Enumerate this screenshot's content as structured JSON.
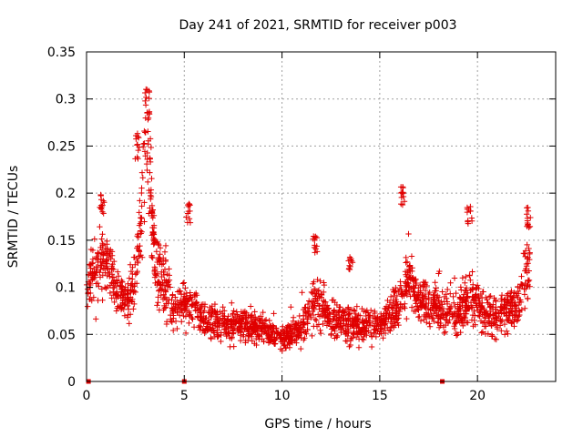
{
  "chart_data": {
    "type": "scatter",
    "title": "Day 241 of 2021, SRMTID for receiver p003",
    "xlabel": "GPS time / hours",
    "ylabel": "SRMTID / TECUs",
    "xlim": [
      0,
      24
    ],
    "ylim": [
      0,
      0.35
    ],
    "x_ticks": [
      "0",
      "5",
      "10",
      "15",
      "20"
    ],
    "y_ticks": [
      "0",
      "0.05",
      "0.1",
      "0.15",
      "0.2",
      "0.25",
      "0.3",
      "0.35"
    ],
    "grid": true,
    "marker": "+",
    "series_color": "#e00000",
    "zero_markers_x": [
      0.1,
      5.0,
      18.2
    ],
    "anchors": [
      [
        0.0,
        0.1
      ],
      [
        0.5,
        0.12
      ],
      [
        1.0,
        0.13
      ],
      [
        1.5,
        0.1
      ],
      [
        2.0,
        0.08
      ],
      [
        2.5,
        0.11
      ],
      [
        2.8,
        0.17
      ],
      [
        3.0,
        0.26
      ],
      [
        3.2,
        0.22
      ],
      [
        3.5,
        0.13
      ],
      [
        4.0,
        0.1
      ],
      [
        4.5,
        0.08
      ],
      [
        5.0,
        0.09
      ],
      [
        6.0,
        0.065
      ],
      [
        7.0,
        0.06
      ],
      [
        8.0,
        0.06
      ],
      [
        9.0,
        0.055
      ],
      [
        10.0,
        0.045
      ],
      [
        11.0,
        0.055
      ],
      [
        11.8,
        0.09
      ],
      [
        12.5,
        0.065
      ],
      [
        14.0,
        0.06
      ],
      [
        15.0,
        0.06
      ],
      [
        16.0,
        0.08
      ],
      [
        16.5,
        0.11
      ],
      [
        17.0,
        0.085
      ],
      [
        18.0,
        0.075
      ],
      [
        19.0,
        0.07
      ],
      [
        19.7,
        0.09
      ],
      [
        20.5,
        0.07
      ],
      [
        21.0,
        0.065
      ],
      [
        22.0,
        0.08
      ],
      [
        22.6,
        0.12
      ]
    ],
    "spike_anchors": [
      [
        3.1,
        0.31
      ],
      [
        2.6,
        0.265
      ],
      [
        0.8,
        0.2
      ],
      [
        5.2,
        0.19
      ],
      [
        16.2,
        0.21
      ],
      [
        19.6,
        0.19
      ],
      [
        11.7,
        0.155
      ],
      [
        22.6,
        0.185
      ],
      [
        13.5,
        0.135
      ]
    ],
    "x_range_points": [
      0.0,
      22.7
    ],
    "point_count": 2200
  }
}
